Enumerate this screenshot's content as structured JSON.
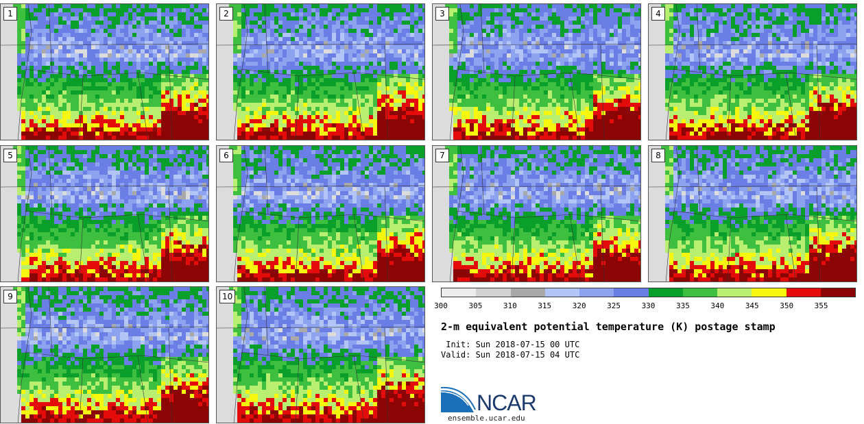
{
  "panels": [
    {
      "label": "1"
    },
    {
      "label": "2"
    },
    {
      "label": "3"
    },
    {
      "label": "4"
    },
    {
      "label": "5"
    },
    {
      "label": "6"
    },
    {
      "label": "7"
    },
    {
      "label": "8"
    },
    {
      "label": "9"
    },
    {
      "label": "10"
    }
  ],
  "colorbar": {
    "colors": [
      "#ececec",
      "#d2d2d2",
      "#a9a9a9",
      "#b3c4f7",
      "#8ea3f0",
      "#6a7ee6",
      "#0a9e2a",
      "#3fbf3f",
      "#b8ef70",
      "#f7f70e",
      "#e40b0b",
      "#8b0505"
    ],
    "tick_labels": [
      "300",
      "305",
      "310",
      "315",
      "320",
      "325",
      "330",
      "335",
      "340",
      "345",
      "350",
      "355"
    ]
  },
  "info": {
    "title": "2-m equivalent potential temperature (K) postage stamp",
    "init": " Init: Sun 2018-07-15 00 UTC",
    "valid": "Valid: Sun 2018-07-15 04 UTC"
  },
  "logo": {
    "text": "NCAR",
    "url": "ensemble.ucar.edu"
  }
}
